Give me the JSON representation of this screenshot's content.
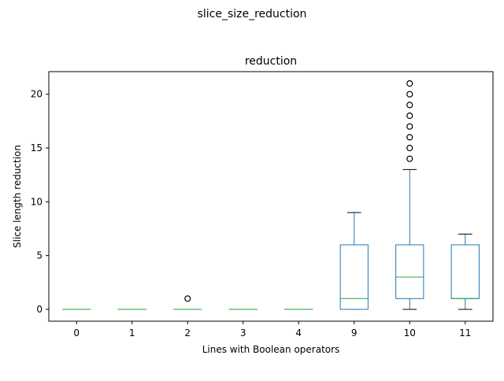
{
  "figure": {
    "suptitle": "slice_size_reduction"
  },
  "chart_data": {
    "type": "box",
    "title": "reduction",
    "xlabel": "Lines with Boolean operators",
    "ylabel": "Slice length reduction",
    "ylim": [
      -1.1,
      22.1
    ],
    "yticks": [
      0,
      5,
      10,
      15,
      20
    ],
    "grid": false,
    "colors": {
      "box": "#1f77b4",
      "median": "#2ca02c",
      "whisker": "#1f77b4",
      "cap": "#000000",
      "flier": "#000000"
    },
    "boxes": [
      {
        "label": "0",
        "whislo": 0,
        "q1": 0,
        "med": 0,
        "q3": 0,
        "whishi": 0,
        "fliers": []
      },
      {
        "label": "1",
        "whislo": 0,
        "q1": 0,
        "med": 0,
        "q3": 0,
        "whishi": 0,
        "fliers": []
      },
      {
        "label": "2",
        "whislo": 0,
        "q1": 0,
        "med": 0,
        "q3": 0,
        "whishi": 0,
        "fliers": [
          1
        ]
      },
      {
        "label": "3",
        "whislo": 0,
        "q1": 0,
        "med": 0,
        "q3": 0,
        "whishi": 0,
        "fliers": []
      },
      {
        "label": "4",
        "whislo": 0,
        "q1": 0,
        "med": 0,
        "q3": 0,
        "whishi": 0,
        "fliers": []
      },
      {
        "label": "9",
        "whislo": 0,
        "q1": 0,
        "med": 1,
        "q3": 6,
        "whishi": 9,
        "fliers": []
      },
      {
        "label": "10",
        "whislo": 0,
        "q1": 1,
        "med": 3,
        "q3": 6,
        "whishi": 13,
        "fliers": [
          14,
          15,
          16,
          17,
          18,
          19,
          20,
          21
        ]
      },
      {
        "label": "11",
        "whislo": 0,
        "q1": 1,
        "med": 1,
        "q3": 6,
        "whishi": 7,
        "fliers": []
      }
    ]
  }
}
